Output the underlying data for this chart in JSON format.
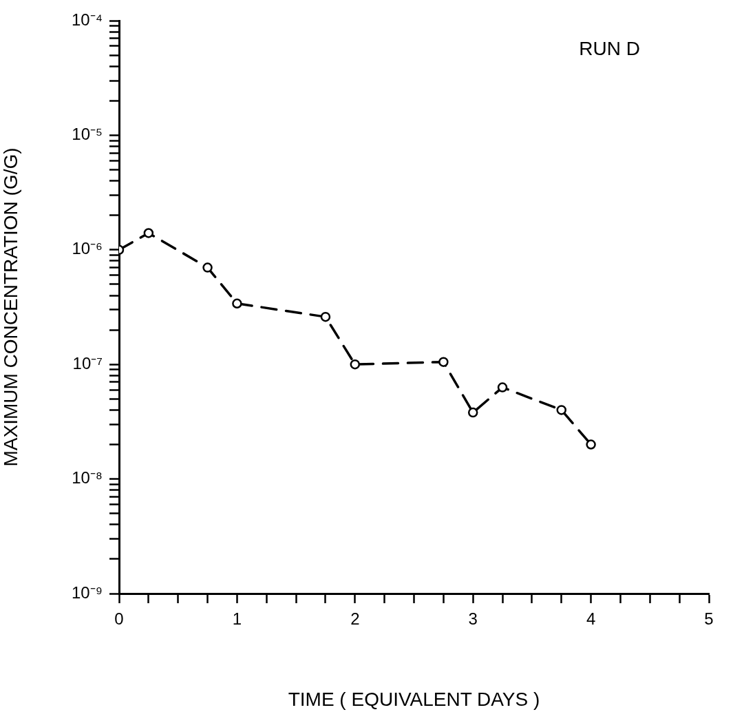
{
  "chart_data": {
    "type": "line",
    "xlabel": "TIME ( EQUIVALENT DAYS )",
    "ylabel": "MAXIMUM CONCENTRATION (G/G)",
    "annotations": [
      "RUN D"
    ],
    "x": [
      0,
      0.25,
      0.75,
      1,
      1.75,
      2,
      2.75,
      3,
      3.25,
      3.75,
      4
    ],
    "series": [
      {
        "color": "#000000",
        "values": [
          1e-06,
          1.4e-06,
          7e-07,
          3.4e-07,
          2.6e-07,
          1e-07,
          1.05e-07,
          3.8e-08,
          6.3e-08,
          4e-08,
          2e-08
        ]
      }
    ],
    "log": "y",
    "grid": false,
    "legend": false,
    "marker": "circle",
    "line_style": "dashed",
    "xlim": [
      0,
      5
    ],
    "xticks": [
      0,
      {
        "value": 0.25,
        "label": null
      },
      {
        "value": 0.5,
        "label": null
      },
      {
        "value": 0.75,
        "label": null
      },
      1,
      {
        "value": 1.25,
        "label": null
      },
      {
        "value": 1.5,
        "label": null
      },
      {
        "value": 1.75,
        "label": null
      },
      2,
      {
        "value": 2.25,
        "label": null
      },
      {
        "value": 2.5,
        "label": null
      },
      {
        "value": 2.75,
        "label": null
      },
      3,
      {
        "value": 3.25,
        "label": null
      },
      {
        "value": 3.5,
        "label": null
      },
      {
        "value": 3.75,
        "label": null
      },
      4,
      {
        "value": 4.25,
        "label": null
      },
      {
        "value": 4.5,
        "label": null
      },
      {
        "value": 4.75,
        "label": null
      },
      5
    ],
    "ylim": [
      1e-09,
      0.0001
    ],
    "yticks": [
      {
        "value": 1e-09,
        "label": "10⁻⁹"
      },
      {
        "value": 2e-09,
        "label": null
      },
      {
        "value": 3e-09,
        "label": null
      },
      {
        "value": 4e-09,
        "label": null
      },
      {
        "value": 5e-09,
        "label": null
      },
      {
        "value": 6e-09,
        "label": null
      },
      {
        "value": 7e-09,
        "label": null
      },
      {
        "value": 8e-09,
        "label": null
      },
      {
        "value": 9e-09,
        "label": null
      },
      {
        "value": 1e-08,
        "label": "10⁻⁸"
      },
      {
        "value": 2e-08,
        "label": null
      },
      {
        "value": 3e-08,
        "label": null
      },
      {
        "value": 4e-08,
        "label": null
      },
      {
        "value": 5e-08,
        "label": null
      },
      {
        "value": 6e-08,
        "label": null
      },
      {
        "value": 7e-08,
        "label": null
      },
      {
        "value": 8e-08,
        "label": null
      },
      {
        "value": 9e-08,
        "label": null
      },
      {
        "value": 1e-07,
        "label": "10⁻⁷"
      },
      {
        "value": 2e-07,
        "label": null
      },
      {
        "value": 3e-07,
        "label": null
      },
      {
        "value": 4e-07,
        "label": null
      },
      {
        "value": 5e-07,
        "label": null
      },
      {
        "value": 6e-07,
        "label": null
      },
      {
        "value": 7e-07,
        "label": null
      },
      {
        "value": 8e-07,
        "label": null
      },
      {
        "value": 9e-07,
        "label": null
      },
      {
        "value": 1e-06,
        "label": "10⁻⁶"
      },
      {
        "value": 2e-06,
        "label": null
      },
      {
        "value": 3e-06,
        "label": null
      },
      {
        "value": 4e-06,
        "label": null
      },
      {
        "value": 5e-06,
        "label": null
      },
      {
        "value": 6e-06,
        "label": null
      },
      {
        "value": 7e-06,
        "label": null
      },
      {
        "value": 8e-06,
        "label": null
      },
      {
        "value": 9e-06,
        "label": null
      },
      {
        "value": 1e-05,
        "label": "10⁻⁵"
      },
      {
        "value": 2e-05,
        "label": null
      },
      {
        "value": 3e-05,
        "label": null
      },
      {
        "value": 4e-05,
        "label": null
      },
      {
        "value": 5e-05,
        "label": null
      },
      {
        "value": 6e-05,
        "label": null
      },
      {
        "value": 7e-05,
        "label": null
      },
      {
        "value": 8e-05,
        "label": null
      },
      {
        "value": 9e-05,
        "label": null
      },
      {
        "value": 0.0001,
        "label": "10⁻⁴"
      }
    ]
  }
}
